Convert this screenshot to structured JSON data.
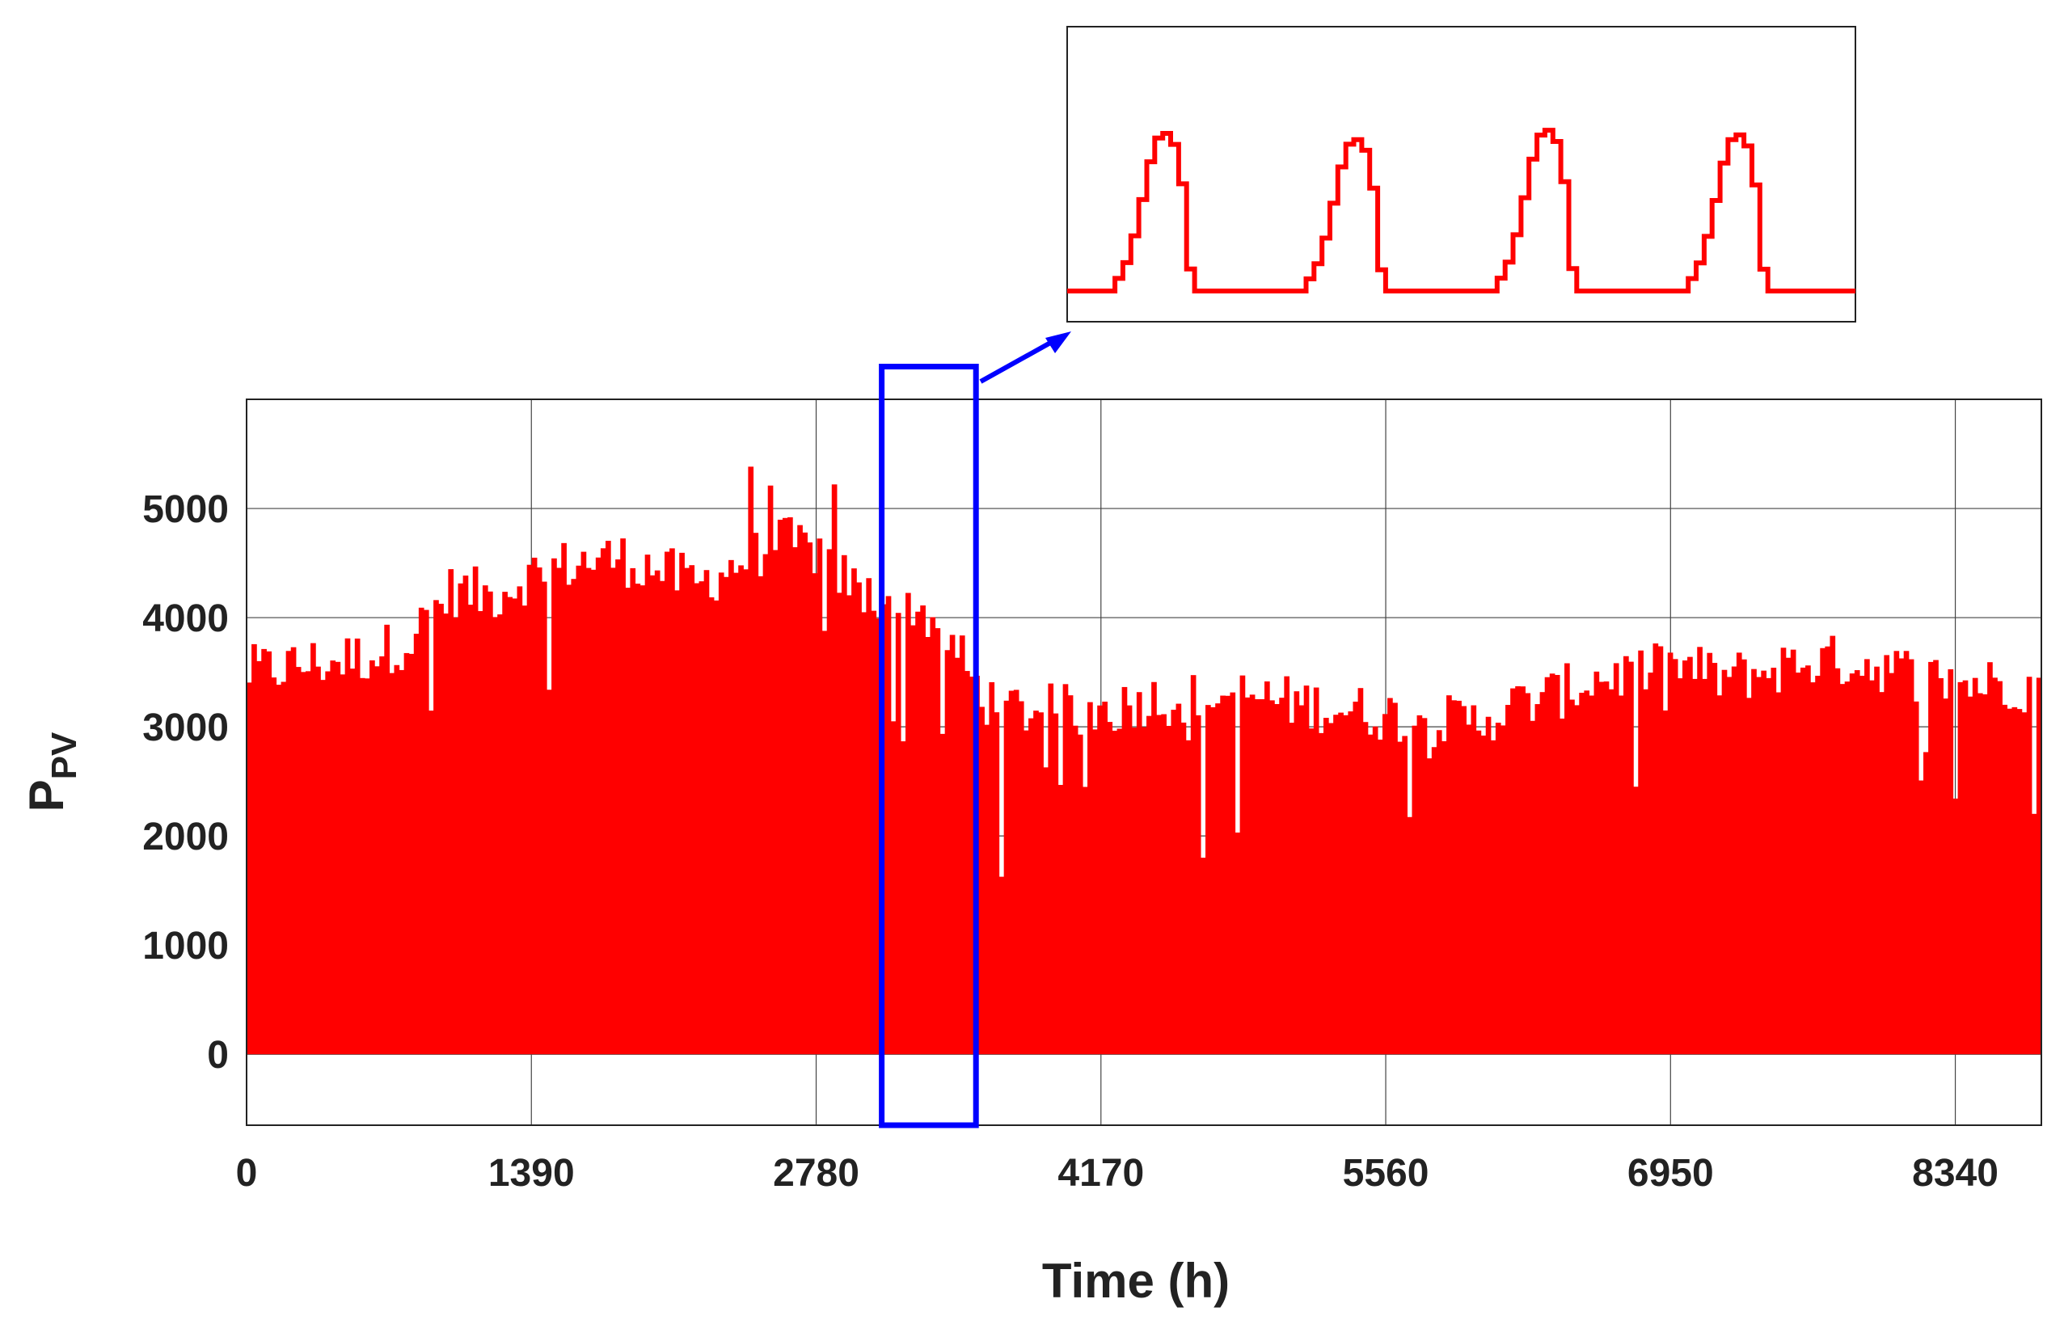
{
  "chart_data": [
    {
      "type": "area",
      "xlabel": "Time (h)",
      "ylabel_main": "P",
      "ylabel_sub": "PV",
      "xlim": [
        0,
        8760
      ],
      "ylim": [
        -650,
        6000
      ],
      "x_ticks": [
        0,
        1390,
        2780,
        4170,
        5560,
        6950,
        8340
      ],
      "y_ticks": [
        0,
        1000,
        2000,
        3000,
        4000,
        5000
      ],
      "grid": true,
      "series_color": "#ff0000",
      "highlight_box": {
        "x_range": [
          3100,
          3560
        ],
        "y_range": [
          -650,
          6300
        ],
        "color": "#0000ff"
      },
      "envelope": {
        "x": [
          0,
          200,
          400,
          600,
          800,
          1000,
          1200,
          1400,
          1600,
          1800,
          2000,
          2200,
          2400,
          2600,
          2800,
          3000,
          3200,
          3400,
          3600,
          3800,
          4000,
          4200,
          4400,
          4600,
          4800,
          5000,
          5200,
          5400,
          5600,
          5800,
          6000,
          6200,
          6400,
          6600,
          6800,
          7000,
          7200,
          7400,
          7600,
          7800,
          8000,
          8200,
          8400,
          8600,
          8760
        ],
        "y": [
          3500,
          3550,
          3600,
          3650,
          3800,
          4250,
          4200,
          4400,
          4500,
          4550,
          4450,
          4300,
          4500,
          4700,
          4600,
          4200,
          4200,
          3900,
          3250,
          3150,
          3150,
          3150,
          3250,
          3250,
          3300,
          3250,
          3200,
          3150,
          3100,
          3050,
          3050,
          3200,
          3300,
          3450,
          3500,
          3550,
          3450,
          3500,
          3600,
          3600,
          3550,
          3450,
          3400,
          3400,
          3350
        ]
      }
    },
    {
      "type": "line",
      "title": "",
      "description_visible": "zoomed detail of the highlighted interval: four daily PV generation peaks",
      "days": 4,
      "profile": [
        0,
        0,
        0,
        0,
        0,
        0,
        0.08,
        0.18,
        0.35,
        0.58,
        0.82,
        0.97,
        1.0,
        0.93,
        0.68,
        0.14,
        0,
        0,
        0,
        0,
        0,
        0,
        0,
        0
      ],
      "peaks": [
        1.0,
        0.96,
        1.02,
        0.99
      ],
      "series_color": "#ff0000"
    }
  ]
}
